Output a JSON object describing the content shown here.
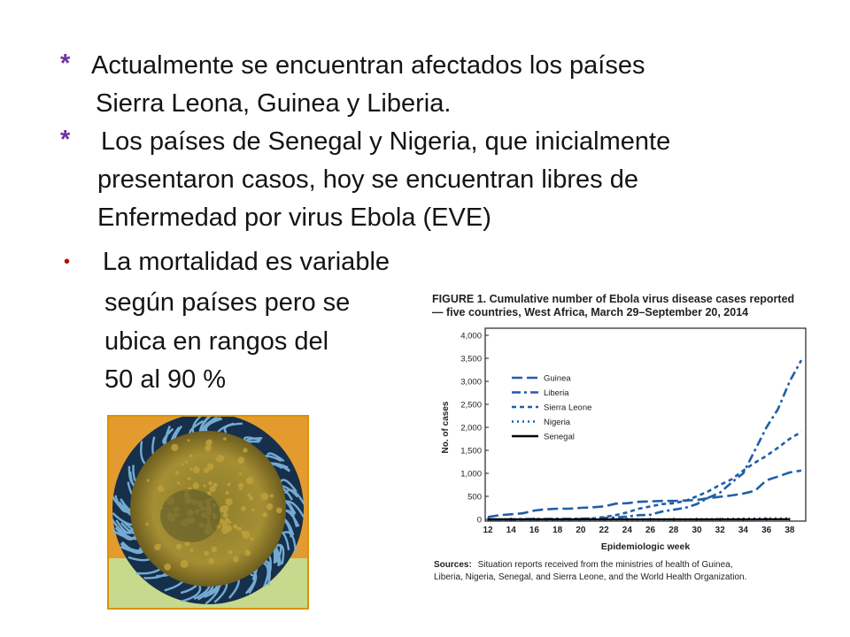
{
  "slide": {
    "bullets": [
      {
        "marker": "*",
        "lines": [
          "Actualmente se encuentran afectados los países",
          "Sierra Leona, Guinea y Liberia."
        ]
      },
      {
        "marker": "*",
        "lines": [
          "Los países de Senegal y Nigeria,  que inicialmente",
          "presentaron casos, hoy se encuentran libres de",
          "Enfermedad por virus Ebola (EVE)"
        ]
      },
      {
        "marker": "•",
        "lines": [
          "La mortalidad es variable",
          "según países pero se",
          "ubica en rangos del",
          "50 al 90 %"
        ]
      }
    ]
  },
  "colors": {
    "marker": "#7030a0",
    "bullet": "#c00000",
    "series": "#1f5fa8",
    "senegal": "#000000",
    "photo_frame": "#d99400"
  },
  "chart_data": {
    "type": "line",
    "title": "FIGURE 1. Cumulative number of Ebola virus disease cases reported",
    "subtitle": "— five countries, West Africa, March 29–September 20, 2014",
    "xlabel": "Epidemiologic week",
    "ylabel": "No. of cases",
    "xlim": [
      12,
      39
    ],
    "ylim": [
      0,
      4000
    ],
    "xticks": [
      12,
      14,
      16,
      18,
      20,
      22,
      24,
      26,
      28,
      30,
      32,
      34,
      36,
      38
    ],
    "yticks": [
      "0",
      "500",
      "1,000",
      "1,500",
      "2,000",
      "2,500",
      "3,000",
      "3,500",
      "4,000"
    ],
    "legend_position": "top-left",
    "grid": false,
    "series": [
      {
        "name": "Guinea",
        "style": "long-dash",
        "x": [
          12,
          13,
          14,
          15,
          16,
          17,
          18,
          19,
          20,
          21,
          22,
          23,
          24,
          25,
          26,
          27,
          28,
          29,
          30,
          31,
          32,
          33,
          34,
          35,
          36,
          37,
          38,
          39
        ],
        "y": [
          50,
          90,
          110,
          130,
          190,
          220,
          230,
          230,
          250,
          260,
          280,
          340,
          350,
          380,
          390,
          400,
          400,
          410,
          420,
          460,
          490,
          520,
          560,
          620,
          850,
          930,
          1020,
          1060
        ]
      },
      {
        "name": "Liberia",
        "style": "dash-dot",
        "x": [
          12,
          13,
          14,
          15,
          16,
          17,
          18,
          19,
          20,
          21,
          22,
          23,
          24,
          25,
          26,
          27,
          28,
          29,
          30,
          31,
          32,
          33,
          34,
          35,
          36,
          37,
          38,
          39
        ],
        "y": [
          0,
          0,
          0,
          5,
          8,
          10,
          12,
          12,
          15,
          20,
          30,
          40,
          60,
          90,
          100,
          170,
          210,
          250,
          330,
          470,
          580,
          800,
          1000,
          1500,
          2000,
          2400,
          3000,
          3460
        ]
      },
      {
        "name": "Sierra Leone",
        "style": "short-dash",
        "x": [
          12,
          13,
          14,
          15,
          16,
          17,
          18,
          19,
          20,
          21,
          22,
          23,
          24,
          25,
          26,
          27,
          28,
          29,
          30,
          31,
          32,
          33,
          34,
          35,
          36,
          37,
          38,
          39
        ],
        "y": [
          0,
          0,
          0,
          0,
          0,
          0,
          0,
          0,
          5,
          20,
          50,
          90,
          150,
          230,
          280,
          330,
          350,
          400,
          500,
          610,
          750,
          870,
          1060,
          1230,
          1380,
          1560,
          1750,
          1900
        ]
      },
      {
        "name": "Nigeria",
        "style": "dotted",
        "x": [
          12,
          30,
          31,
          32,
          33,
          34,
          35,
          36,
          37,
          38
        ],
        "y": [
          0,
          0,
          3,
          5,
          10,
          13,
          17,
          19,
          19,
          20
        ]
      },
      {
        "name": "Senegal",
        "style": "solid",
        "x": [
          12,
          35,
          36,
          37,
          38
        ],
        "y": [
          0,
          0,
          1,
          1,
          1
        ]
      }
    ],
    "sources_label": "Sources:",
    "sources_lines": [
      "Situation reports received from the ministries of health of Guinea,",
      "Liberia, Nigeria, Senegal, and Sierra Leone, and the World Health Organization."
    ]
  }
}
